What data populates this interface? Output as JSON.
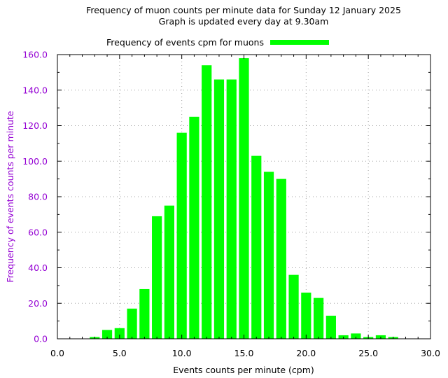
{
  "chart_data": {
    "type": "bar",
    "title": "Frequency of muon counts per minute data for Sunday 12 January 2025",
    "subtitle": "Graph is updated every day at 9.30am",
    "xlabel": "Events counts per minute (cpm)",
    "ylabel": "Frequency of events counts per minute",
    "xlim": [
      0,
      30
    ],
    "ylim": [
      0,
      160
    ],
    "xticks": [
      "0.0",
      "5.0",
      "10.0",
      "15.0",
      "20.0",
      "25.0",
      "30.0"
    ],
    "yticks": [
      "0.0",
      "20.0",
      "40.0",
      "60.0",
      "80.0",
      "100.0",
      "120.0",
      "140.0",
      "160.0"
    ],
    "grid": true,
    "legend_position": "top-center",
    "series": [
      {
        "name": "Frequency of events cpm for muons",
        "color": "#00ff00",
        "x": [
          3,
          4,
          5,
          6,
          7,
          8,
          9,
          10,
          11,
          12,
          13,
          14,
          15,
          16,
          17,
          18,
          19,
          20,
          21,
          22,
          23,
          24,
          25,
          26,
          27
        ],
        "values": [
          1,
          5,
          6,
          17,
          28,
          69,
          75,
          116,
          125,
          154,
          146,
          146,
          158,
          103,
          94,
          90,
          36,
          26,
          23,
          13,
          2,
          3,
          1,
          2,
          1
        ]
      }
    ]
  }
}
